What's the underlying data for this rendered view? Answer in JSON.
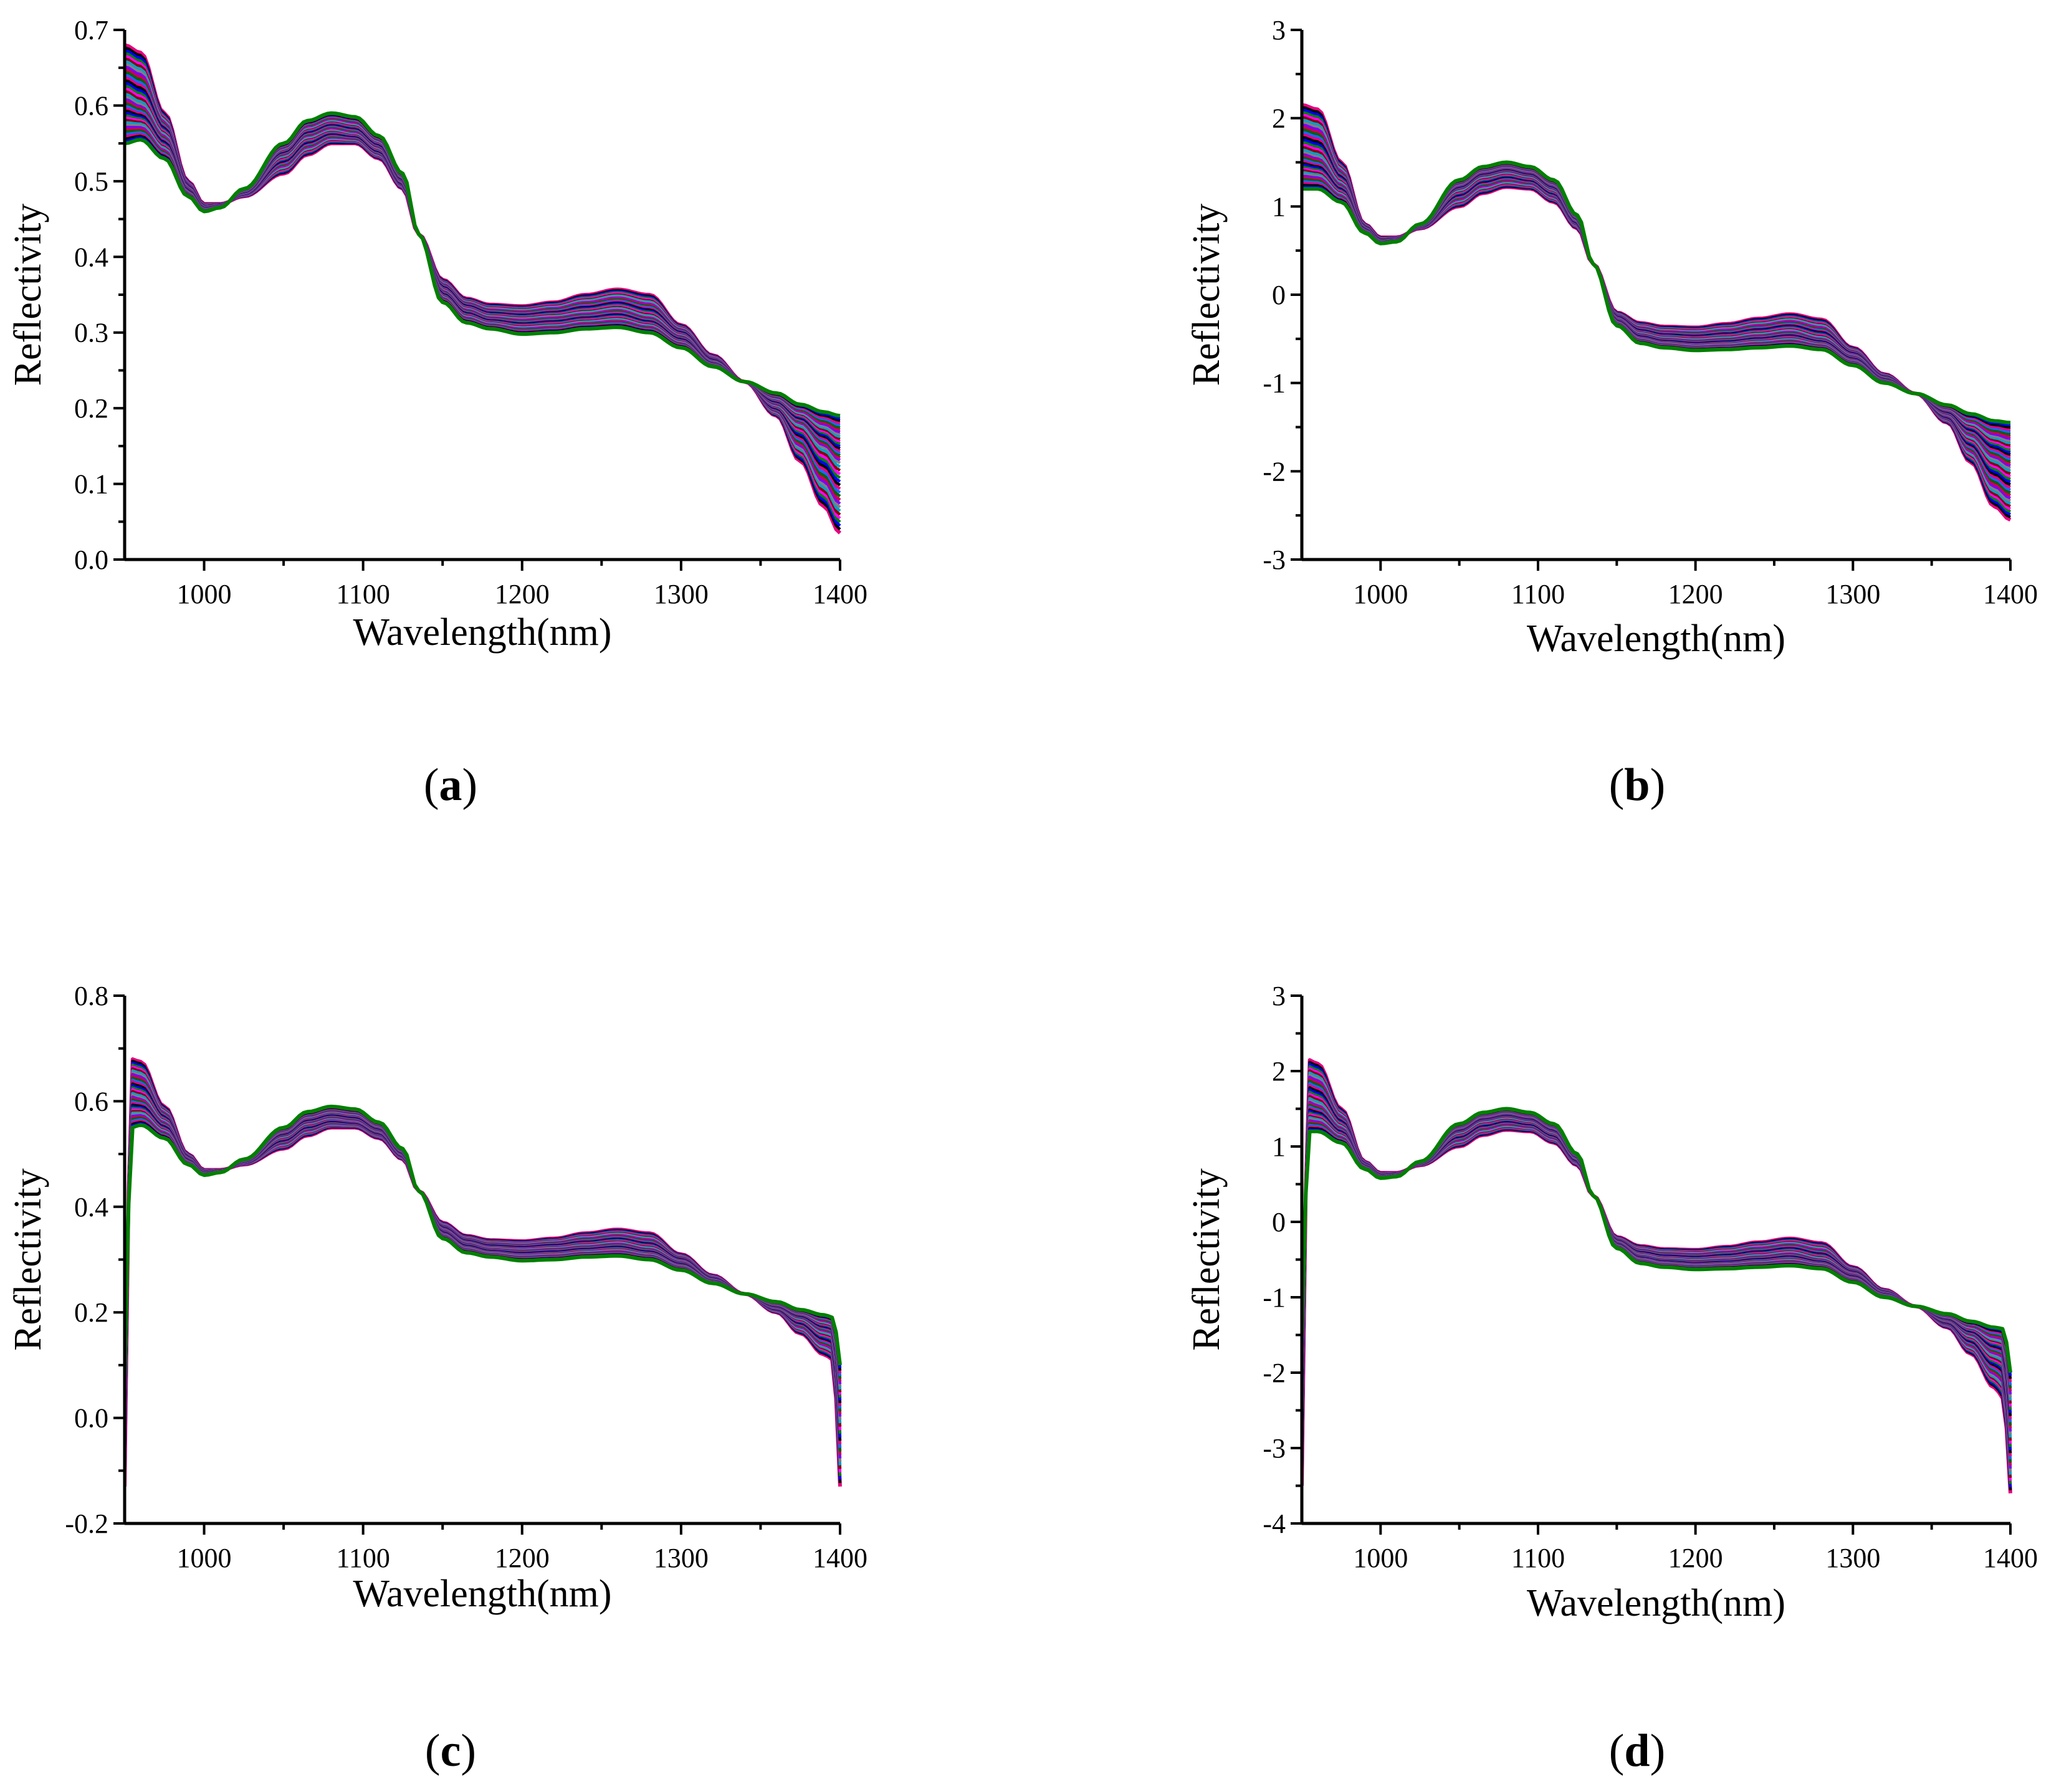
{
  "figure": {
    "panels": [
      {
        "id": "a",
        "label_letter": "a",
        "label_open": "(",
        "label_close": ")"
      },
      {
        "id": "b",
        "label_letter": "b",
        "label_open": "(",
        "label_close": ")"
      },
      {
        "id": "c",
        "label_letter": "c",
        "label_open": "(",
        "label_close": ")"
      },
      {
        "id": "d",
        "label_letter": "d",
        "label_open": "(",
        "label_close": ")"
      }
    ]
  },
  "chart_data": [
    {
      "type": "line",
      "panel": "a",
      "title": "",
      "xlabel": "Wavelength(nm)",
      "ylabel": "Reflectivity",
      "xlim": [
        950,
        1400
      ],
      "ylim": [
        0.0,
        0.7
      ],
      "xticks": [
        1000,
        1100,
        1200,
        1300,
        1400
      ],
      "yticks": [
        0.0,
        0.1,
        0.2,
        0.3,
        0.4,
        0.5,
        0.6,
        0.7
      ],
      "ytick_labels": [
        "0.0",
        "0.1",
        "0.2",
        "0.3",
        "0.4",
        "0.5",
        "0.6",
        "0.7"
      ],
      "x": [
        950,
        960,
        975,
        990,
        1000,
        1010,
        1025,
        1050,
        1065,
        1080,
        1095,
        1110,
        1125,
        1135,
        1150,
        1165,
        1180,
        1200,
        1220,
        1240,
        1260,
        1280,
        1300,
        1320,
        1340,
        1360,
        1375,
        1390,
        1400
      ],
      "anchors": [
        {
          "name": "high",
          "values": [
            0.68,
            0.67,
            0.59,
            0.5,
            0.47,
            0.47,
            0.48,
            0.51,
            0.535,
            0.55,
            0.55,
            0.53,
            0.49,
            0.43,
            0.37,
            0.345,
            0.337,
            0.335,
            0.34,
            0.35,
            0.357,
            0.35,
            0.31,
            0.27,
            0.235,
            0.19,
            0.13,
            0.07,
            0.035
          ]
        },
        {
          "name": "mid",
          "values": [
            0.61,
            0.6,
            0.56,
            0.49,
            0.465,
            0.468,
            0.485,
            0.535,
            0.56,
            0.57,
            0.565,
            0.545,
            0.5,
            0.43,
            0.355,
            0.33,
            0.32,
            0.317,
            0.32,
            0.325,
            0.33,
            0.32,
            0.295,
            0.26,
            0.235,
            0.205,
            0.18,
            0.15,
            0.13
          ]
        },
        {
          "name": "low",
          "values": [
            0.55,
            0.555,
            0.53,
            0.48,
            0.46,
            0.465,
            0.49,
            0.55,
            0.58,
            0.59,
            0.585,
            0.56,
            0.51,
            0.43,
            0.34,
            0.313,
            0.305,
            0.298,
            0.3,
            0.305,
            0.307,
            0.3,
            0.28,
            0.255,
            0.235,
            0.22,
            0.205,
            0.195,
            0.19
          ]
        }
      ],
      "n_series": 40,
      "end_artifacts": false,
      "series_colors": [
        "#e6007e",
        "#000000",
        "#0000ff",
        "#008000",
        "#ff00ff",
        "#8b0000",
        "#00a0c8",
        "#808080",
        "#7b00ff",
        "#c80050",
        "#006400",
        "#1e64ff"
      ]
    },
    {
      "type": "line",
      "panel": "b",
      "title": "",
      "xlabel": "Wavelength(nm)",
      "ylabel": "Reflectivity",
      "xlim": [
        950,
        1400
      ],
      "ylim": [
        -3,
        3
      ],
      "xticks": [
        1000,
        1100,
        1200,
        1300,
        1400
      ],
      "yticks": [
        -3,
        -2,
        -1,
        0,
        1,
        2,
        3
      ],
      "ytick_labels": [
        "-3",
        "-2",
        "-1",
        "0",
        "1",
        "2",
        "3"
      ],
      "x": [
        950,
        960,
        975,
        990,
        1000,
        1010,
        1025,
        1050,
        1065,
        1080,
        1095,
        1110,
        1125,
        1135,
        1150,
        1165,
        1180,
        1200,
        1220,
        1240,
        1260,
        1280,
        1300,
        1320,
        1340,
        1360,
        1375,
        1390,
        1400
      ],
      "anchors": [
        {
          "name": "high",
          "values": [
            2.15,
            2.1,
            1.5,
            0.8,
            0.65,
            0.65,
            0.75,
            1.0,
            1.15,
            1.22,
            1.2,
            1.05,
            0.75,
            0.35,
            -0.2,
            -0.32,
            -0.36,
            -0.37,
            -0.33,
            -0.27,
            -0.22,
            -0.28,
            -0.6,
            -0.9,
            -1.12,
            -1.45,
            -1.9,
            -2.4,
            -2.55
          ]
        },
        {
          "name": "mid",
          "values": [
            1.6,
            1.55,
            1.25,
            0.75,
            0.6,
            0.62,
            0.78,
            1.2,
            1.35,
            1.4,
            1.35,
            1.2,
            0.85,
            0.35,
            -0.28,
            -0.45,
            -0.5,
            -0.52,
            -0.5,
            -0.46,
            -0.42,
            -0.5,
            -0.7,
            -0.95,
            -1.12,
            -1.35,
            -1.6,
            -1.85,
            -1.95
          ]
        },
        {
          "name": "low",
          "values": [
            1.2,
            1.2,
            1.05,
            0.7,
            0.58,
            0.6,
            0.8,
            1.3,
            1.45,
            1.5,
            1.45,
            1.3,
            0.9,
            0.35,
            -0.35,
            -0.55,
            -0.6,
            -0.63,
            -0.62,
            -0.6,
            -0.58,
            -0.62,
            -0.8,
            -1.0,
            -1.12,
            -1.25,
            -1.35,
            -1.43,
            -1.45
          ]
        }
      ],
      "n_series": 40,
      "end_artifacts": false,
      "series_colors": [
        "#e6007e",
        "#000000",
        "#0000ff",
        "#008000",
        "#ff00ff",
        "#8b0000",
        "#00a0c8",
        "#808080",
        "#7b00ff",
        "#c80050",
        "#006400",
        "#1e64ff"
      ]
    },
    {
      "type": "line",
      "panel": "c",
      "title": "",
      "xlabel": "Wavelength(nm)",
      "ylabel": "Reflectivity",
      "xlim": [
        950,
        1400
      ],
      "ylim": [
        -0.2,
        0.8
      ],
      "xticks": [
        1000,
        1100,
        1200,
        1300,
        1400
      ],
      "yticks": [
        -0.2,
        0.0,
        0.2,
        0.4,
        0.6,
        0.8
      ],
      "ytick_labels": [
        "-0.2",
        "0.0",
        "0.2",
        "0.4",
        "0.6",
        "0.8"
      ],
      "x": [
        950,
        954,
        960,
        975,
        990,
        1000,
        1010,
        1025,
        1050,
        1065,
        1080,
        1095,
        1110,
        1125,
        1135,
        1150,
        1165,
        1180,
        1200,
        1220,
        1240,
        1260,
        1280,
        1300,
        1320,
        1340,
        1360,
        1375,
        1390,
        1396,
        1400
      ],
      "anchors": [
        {
          "name": "high",
          "values": [
            -0.13,
            0.68,
            0.675,
            0.59,
            0.5,
            0.47,
            0.47,
            0.48,
            0.51,
            0.535,
            0.55,
            0.55,
            0.53,
            0.49,
            0.43,
            0.37,
            0.345,
            0.337,
            0.335,
            0.34,
            0.35,
            0.357,
            0.35,
            0.31,
            0.27,
            0.235,
            0.2,
            0.16,
            0.12,
            0.11,
            -0.13
          ]
        },
        {
          "name": "mid",
          "values": [
            -0.02,
            0.61,
            0.605,
            0.56,
            0.49,
            0.465,
            0.468,
            0.485,
            0.535,
            0.56,
            0.57,
            0.565,
            0.545,
            0.5,
            0.43,
            0.355,
            0.33,
            0.32,
            0.317,
            0.32,
            0.325,
            0.33,
            0.32,
            0.295,
            0.26,
            0.235,
            0.21,
            0.19,
            0.165,
            0.16,
            0.0
          ]
        },
        {
          "name": "low",
          "values": [
            0.08,
            0.55,
            0.555,
            0.53,
            0.48,
            0.46,
            0.465,
            0.49,
            0.55,
            0.58,
            0.59,
            0.585,
            0.56,
            0.51,
            0.43,
            0.34,
            0.313,
            0.305,
            0.298,
            0.3,
            0.305,
            0.307,
            0.3,
            0.28,
            0.255,
            0.235,
            0.22,
            0.205,
            0.195,
            0.19,
            0.1
          ]
        }
      ],
      "n_series": 40,
      "end_artifacts": true,
      "series_colors": [
        "#e6007e",
        "#000000",
        "#0000ff",
        "#008000",
        "#ff00ff",
        "#8b0000",
        "#00a0c8",
        "#808080",
        "#7b00ff",
        "#c80050",
        "#006400",
        "#1e64ff"
      ]
    },
    {
      "type": "line",
      "panel": "d",
      "title": "",
      "xlabel": "Wavelength(nm)",
      "ylabel": "Reflectivity",
      "xlim": [
        950,
        1400
      ],
      "ylim": [
        -4,
        3
      ],
      "xticks": [
        1000,
        1100,
        1200,
        1300,
        1400
      ],
      "yticks": [
        -4,
        -3,
        -2,
        -1,
        0,
        1,
        2,
        3
      ],
      "ytick_labels": [
        "-4",
        "-3",
        "-2",
        "-1",
        "0",
        "1",
        "2",
        "3"
      ],
      "x": [
        950,
        954,
        960,
        975,
        990,
        1000,
        1010,
        1025,
        1050,
        1065,
        1080,
        1095,
        1110,
        1125,
        1135,
        1150,
        1165,
        1180,
        1200,
        1220,
        1240,
        1260,
        1280,
        1300,
        1320,
        1340,
        1360,
        1375,
        1390,
        1396,
        1400
      ],
      "anchors": [
        {
          "name": "high",
          "values": [
            -3.5,
            2.15,
            2.1,
            1.5,
            0.8,
            0.65,
            0.65,
            0.75,
            1.0,
            1.15,
            1.22,
            1.2,
            1.05,
            0.75,
            0.35,
            -0.2,
            -0.32,
            -0.36,
            -0.37,
            -0.33,
            -0.27,
            -0.22,
            -0.28,
            -0.6,
            -0.9,
            -1.12,
            -1.4,
            -1.75,
            -2.2,
            -2.35,
            -3.6
          ]
        },
        {
          "name": "mid",
          "values": [
            -2.5,
            1.6,
            1.55,
            1.25,
            0.75,
            0.6,
            0.62,
            0.78,
            1.2,
            1.35,
            1.4,
            1.35,
            1.2,
            0.85,
            0.35,
            -0.28,
            -0.45,
            -0.5,
            -0.52,
            -0.5,
            -0.46,
            -0.42,
            -0.5,
            -0.7,
            -0.95,
            -1.12,
            -1.3,
            -1.5,
            -1.75,
            -1.8,
            -2.8
          ]
        },
        {
          "name": "low",
          "values": [
            -1.5,
            1.2,
            1.2,
            1.05,
            0.7,
            0.58,
            0.6,
            0.8,
            1.3,
            1.45,
            1.5,
            1.45,
            1.3,
            0.9,
            0.35,
            -0.35,
            -0.55,
            -0.6,
            -0.63,
            -0.62,
            -0.6,
            -0.58,
            -0.62,
            -0.8,
            -1.0,
            -1.12,
            -1.22,
            -1.32,
            -1.4,
            -1.42,
            -2.0
          ]
        }
      ],
      "n_series": 40,
      "end_artifacts": true,
      "series_colors": [
        "#e6007e",
        "#000000",
        "#0000ff",
        "#008000",
        "#ff00ff",
        "#8b0000",
        "#00a0c8",
        "#808080",
        "#7b00ff",
        "#c80050",
        "#006400",
        "#1e64ff"
      ]
    }
  ]
}
